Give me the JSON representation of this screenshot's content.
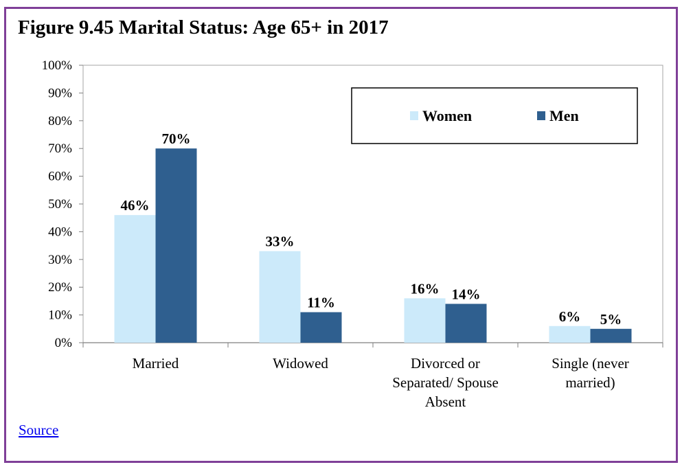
{
  "figure": {
    "title": "Figure 9.45 Marital Status: Age 65+ in 2017",
    "source_label": "Source"
  },
  "colors": {
    "women": "#cceafa",
    "men": "#2f5f8f",
    "frame": "#7f3f98",
    "link": "#0000ee"
  },
  "chart_data": {
    "type": "bar",
    "title": "Figure 9.45 Marital Status: Age 65+ in 2017",
    "categories": [
      [
        "Married"
      ],
      [
        "Widowed"
      ],
      [
        "Divorced or",
        "Separated/ Spouse",
        "Absent"
      ],
      [
        "Single (never",
        "married)"
      ]
    ],
    "series": [
      {
        "name": "Women",
        "values": [
          46,
          33,
          16,
          6
        ],
        "labels": [
          "46%",
          "33%",
          "16%",
          "6%"
        ]
      },
      {
        "name": "Men",
        "values": [
          70,
          11,
          14,
          5
        ],
        "labels": [
          "70%",
          "11%",
          "14%",
          "5%"
        ]
      }
    ],
    "yticks": [
      "0%",
      "10%",
      "20%",
      "30%",
      "40%",
      "50%",
      "60%",
      "70%",
      "80%",
      "90%",
      "100%"
    ],
    "ylim": [
      0,
      100
    ],
    "xlabel": "",
    "ylabel": "",
    "grid": false,
    "legend": "top-right"
  }
}
